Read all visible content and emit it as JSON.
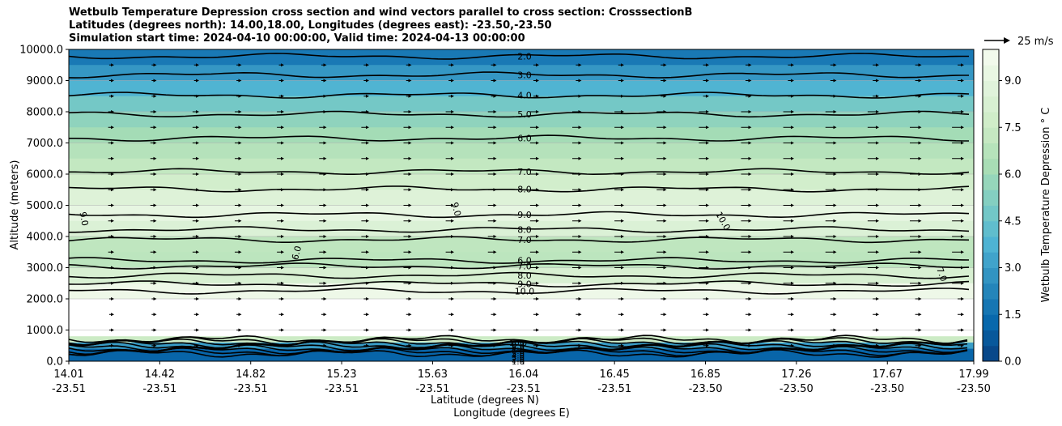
{
  "title": {
    "line1": "Wetbulb Temperature Depression cross section and wind vectors parallel to cross section: CrosssectionB",
    "line2": "Latitudes (degrees north): 14.00,18.00, Longitudes (degrees east): -23.50,-23.50",
    "line3": "Simulation start time: 2024-04-10 00:00:00, Valid time: 2024-04-13 00:00:00"
  },
  "chart_data": {
    "type": "heatmap",
    "ylabel": "Altitude (meters)",
    "xlabel_lat": "Latitude (degrees N)",
    "xlabel_lon": "Longitude (degrees E)",
    "ylim": [
      0,
      10000
    ],
    "y_ticks": [
      "0.0",
      "1000.0",
      "2000.0",
      "3000.0",
      "4000.0",
      "5000.0",
      "6000.0",
      "7000.0",
      "8000.0",
      "9000.0",
      "10000.0"
    ],
    "x_ticks": [
      {
        "lat": "14.01",
        "lon": "-23.51"
      },
      {
        "lat": "14.42",
        "lon": "-23.51"
      },
      {
        "lat": "14.82",
        "lon": "-23.51"
      },
      {
        "lat": "15.23",
        "lon": "-23.51"
      },
      {
        "lat": "15.63",
        "lon": "-23.51"
      },
      {
        "lat": "16.04",
        "lon": "-23.51"
      },
      {
        "lat": "16.45",
        "lon": "-23.51"
      },
      {
        "lat": "16.85",
        "lon": "-23.50"
      },
      {
        "lat": "17.26",
        "lon": "-23.50"
      },
      {
        "lat": "17.67",
        "lon": "-23.50"
      },
      {
        "lat": "17.99",
        "lon": "-23.50"
      }
    ],
    "colorbar": {
      "label": "Wetbulb Temperature Depression ° C",
      "min": 0,
      "max": 10,
      "ticks": [
        "0.0",
        "1.5",
        "3.0",
        "4.5",
        "6.0",
        "7.5",
        "9.0"
      ],
      "colormap": "GnBu_r",
      "colors": [
        "#084081",
        "#0868ac",
        "#2b8cbe",
        "#4eb3d3",
        "#7bccc4",
        "#a8ddb5",
        "#ccebc5",
        "#e0f3db",
        "#f7fcf0"
      ]
    },
    "wind_reference": "25 m/s",
    "grid": true,
    "layers": [
      {
        "z": 10000,
        "value": 1.3
      },
      {
        "z": 9500,
        "value": 2.4
      },
      {
        "z": 9000,
        "value": 3.3
      },
      {
        "z": 8500,
        "value": 4.3
      },
      {
        "z": 8000,
        "value": 5.3
      },
      {
        "z": 7500,
        "value": 5.8
      },
      {
        "z": 7000,
        "value": 6.5
      },
      {
        "z": 6500,
        "value": 6.9
      },
      {
        "z": 6000,
        "value": 7.5
      },
      {
        "z": 5500,
        "value": 8.3
      },
      {
        "z": 5000,
        "value": 8.9
      },
      {
        "z": 4500,
        "value": 9.4
      },
      {
        "z": 4000,
        "value": 7.5
      },
      {
        "z": 3500,
        "value": 6.6
      },
      {
        "z": 3000,
        "value": 7.3
      },
      {
        "z": 2500,
        "value": 9.2
      },
      {
        "z": 2000,
        "value": 9.8
      },
      {
        "z": 1500,
        "value": 10.6
      },
      {
        "z": 1000,
        "value": 11.0
      },
      {
        "z": 800,
        "value": 10.5
      },
      {
        "z": 600,
        "value": 4.5
      },
      {
        "z": 400,
        "value": 1.5
      },
      {
        "z": 0,
        "value": 0.8
      }
    ],
    "contours": [
      {
        "label": "2.0",
        "z": 9780
      },
      {
        "label": "3.0",
        "z": 9180
      },
      {
        "label": "4.0",
        "z": 8530
      },
      {
        "label": "5.0",
        "z": 7920
      },
      {
        "label": "6.0",
        "z": 7150
      },
      {
        "label": "7.0",
        "z": 6080
      },
      {
        "label": "8.0",
        "z": 5520
      },
      {
        "label": "9.0",
        "z": 4700
      },
      {
        "label": "8.0",
        "z": 4220
      },
      {
        "label": "7.0",
        "z": 3900
      },
      {
        "label": "6.0",
        "z": 3230
      },
      {
        "label": "7.0",
        "z": 3050
      },
      {
        "label": "8.0",
        "z": 2750
      },
      {
        "label": "9.0",
        "z": 2480
      },
      {
        "label": "10.0",
        "z": 2250
      }
    ],
    "surface_contour_labels": [
      "10.0",
      "9.0",
      "8.0",
      "7.0",
      "6.0",
      "5.0",
      "4.0",
      "3.0",
      "2.0",
      "1.0"
    ],
    "rotated_labels": [
      "9.0",
      "9.0",
      "6.0",
      "10.0",
      "7.0"
    ]
  }
}
